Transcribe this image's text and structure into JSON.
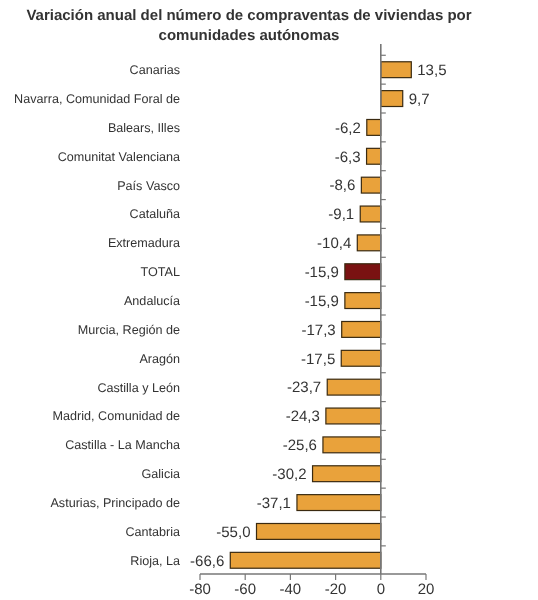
{
  "chart_data": {
    "type": "bar",
    "orientation": "horizontal",
    "title": "Variación anual del número de compraventas de viviendas por comunidades autónomas",
    "categories": [
      "Canarias",
      "Navarra, Comunidad Foral de",
      "Balears, Illes",
      "Comunitat Valenciana",
      "País Vasco",
      "Cataluña",
      "Extremadura",
      "TOTAL",
      "Andalucía",
      "Murcia, Región de",
      "Aragón",
      "Castilla y León",
      "Madrid, Comunidad de",
      "Castilla - La Mancha",
      "Galicia",
      "Asturias, Principado de",
      "Cantabria",
      "Rioja, La"
    ],
    "values": [
      13.5,
      9.7,
      -6.2,
      -6.3,
      -8.6,
      -9.1,
      -10.4,
      -15.9,
      -15.9,
      -17.3,
      -17.5,
      -23.7,
      -24.3,
      -25.6,
      -30.2,
      -37.1,
      -55.0,
      -66.6
    ],
    "value_labels": [
      "13,5",
      "9,7",
      "-6,2",
      "-6,3",
      "-8,6",
      "-9,1",
      "-10,4",
      "-15,9",
      "-15,9",
      "-17,3",
      "-17,5",
      "-23,7",
      "-24,3",
      "-25,6",
      "-30,2",
      "-37,1",
      "-55,0",
      "-66,6"
    ],
    "colors": [
      "#e9a23b",
      "#e9a23b",
      "#e9a23b",
      "#e9a23b",
      "#e9a23b",
      "#e9a23b",
      "#e9a23b",
      "#7a1212",
      "#e9a23b",
      "#e9a23b",
      "#e9a23b",
      "#e9a23b",
      "#e9a23b",
      "#e9a23b",
      "#e9a23b",
      "#e9a23b",
      "#e9a23b",
      "#e9a23b"
    ],
    "xlim": [
      -80,
      20
    ],
    "xticks": [
      -80,
      -60,
      -40,
      -20,
      0,
      20
    ]
  }
}
